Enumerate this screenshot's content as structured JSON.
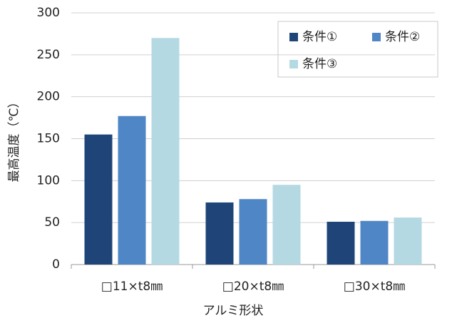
{
  "chart_data": {
    "type": "bar",
    "x_label": "アルミ形状",
    "y_label": "最高温度（℃）",
    "categories": [
      "□11×t8㎜",
      "□20×t8㎜",
      "□30×t8㎜"
    ],
    "series": [
      {
        "name": "条件①",
        "color": "#1f4578",
        "values": [
          155,
          74,
          51
        ]
      },
      {
        "name": "条件②",
        "color": "#4f86c6",
        "values": [
          177,
          78,
          52
        ]
      },
      {
        "name": "条件③",
        "color": "#b4d9e3",
        "values": [
          270,
          95,
          56
        ]
      }
    ],
    "ylim": [
      0,
      300
    ],
    "yticks": [
      0,
      50,
      100,
      150,
      200,
      250,
      300
    ],
    "grid": true,
    "legend": "top-right"
  }
}
